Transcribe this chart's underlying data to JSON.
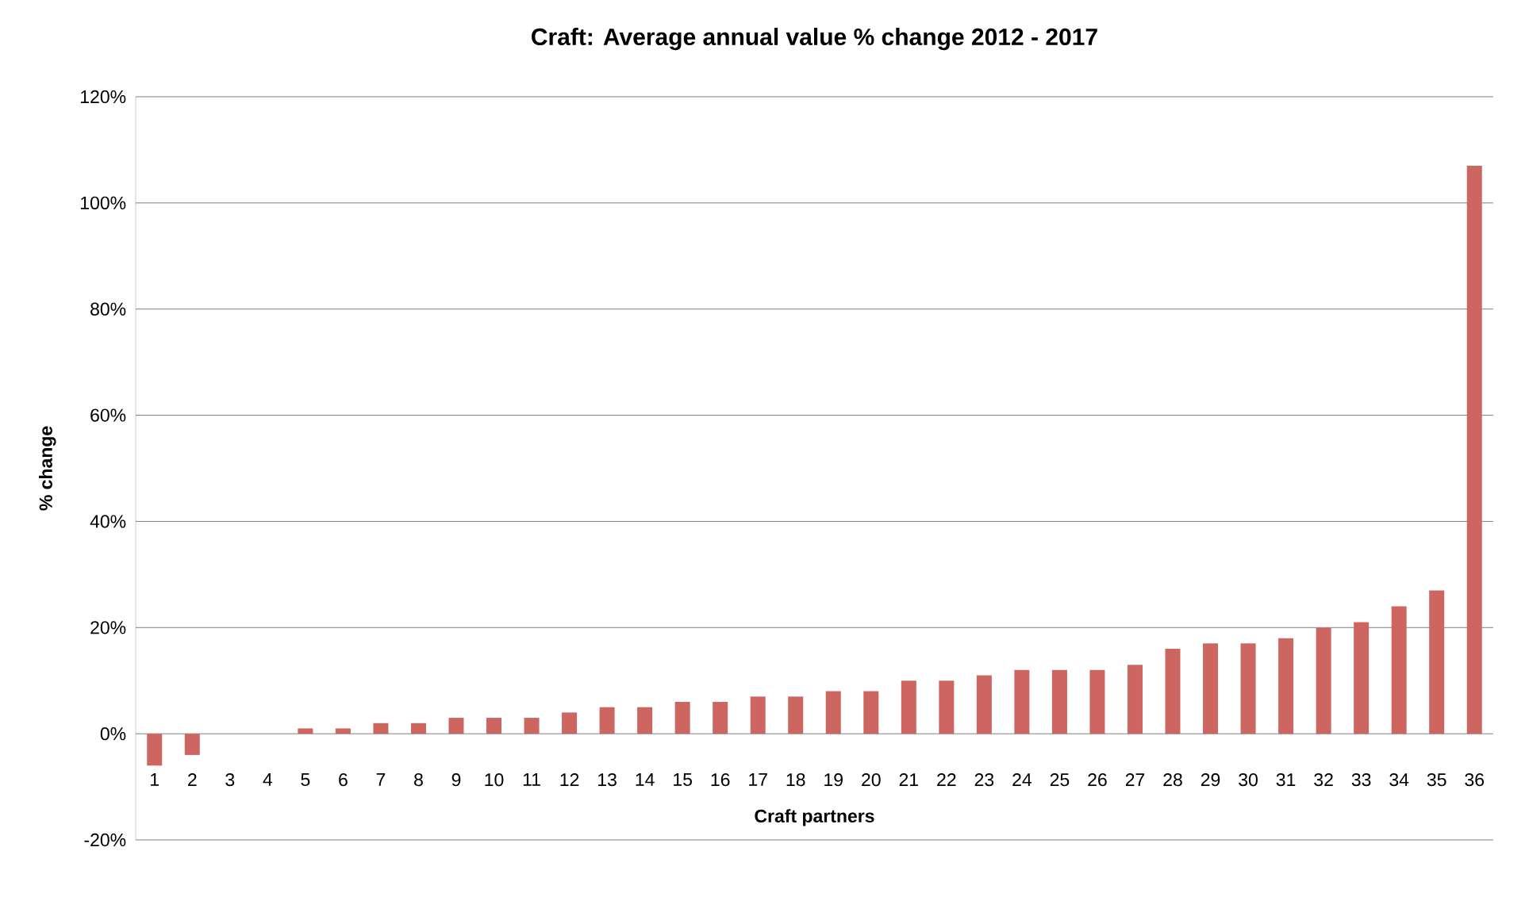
{
  "chart_data": {
    "type": "bar",
    "title": "Craft: Average annual value % change 2012 - 2017",
    "xlabel": "Craft partners",
    "ylabel": "% change",
    "categories": [
      "1",
      "2",
      "3",
      "4",
      "5",
      "6",
      "7",
      "8",
      "9",
      "10",
      "11",
      "12",
      "13",
      "14",
      "15",
      "16",
      "17",
      "18",
      "19",
      "20",
      "21",
      "22",
      "23",
      "24",
      "25",
      "26",
      "27",
      "28",
      "29",
      "30",
      "31",
      "32",
      "33",
      "34",
      "35",
      "36"
    ],
    "values": [
      -6,
      -4,
      0,
      0,
      1,
      1,
      2,
      2,
      3,
      3,
      3,
      4,
      5,
      5,
      6,
      6,
      7,
      7,
      8,
      8,
      10,
      10,
      11,
      12,
      12,
      12,
      13,
      16,
      17,
      17,
      18,
      20,
      21,
      24,
      27,
      107
    ],
    "color": "#cd6660",
    "ylim": [
      -20,
      120
    ],
    "yticks": [
      {
        "value": -20,
        "label": "-20%"
      },
      {
        "value": 0,
        "label": "0%"
      },
      {
        "value": 20,
        "label": "20%"
      },
      {
        "value": 40,
        "label": "40%"
      },
      {
        "value": 60,
        "label": "60%"
      },
      {
        "value": 80,
        "label": "80%"
      },
      {
        "value": 100,
        "label": "100%"
      },
      {
        "value": 120,
        "label": "120%"
      }
    ],
    "grid": "y"
  }
}
